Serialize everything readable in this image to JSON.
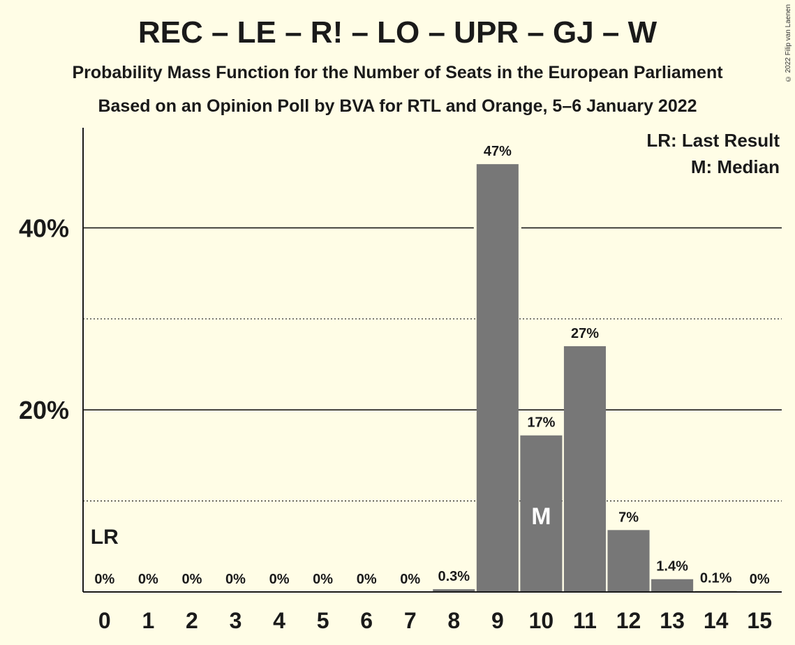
{
  "chart_data": {
    "type": "bar",
    "title": "REC – LE – R! – LO – UPR – GJ – W",
    "subtitle": "Probability Mass Function for the Number of Seats in the European Parliament",
    "subtitle2": "Based on an Opinion Poll by BVA for RTL and Orange, 5–6 January 2022",
    "xlabel": "",
    "ylabel": "",
    "categories": [
      "0",
      "1",
      "2",
      "3",
      "4",
      "5",
      "6",
      "7",
      "8",
      "9",
      "10",
      "11",
      "12",
      "13",
      "14",
      "15"
    ],
    "values": [
      0,
      0,
      0,
      0,
      0,
      0,
      0,
      0,
      0.3,
      47,
      17.2,
      27,
      6.8,
      1.4,
      0.1,
      0
    ],
    "data_labels": [
      "0%",
      "0%",
      "0%",
      "0%",
      "0%",
      "0%",
      "0%",
      "0%",
      "0.3%",
      "47%",
      "17%",
      "27%",
      "7%",
      "1.4%",
      "0.1%",
      "0%"
    ],
    "ylim": [
      0,
      51
    ],
    "y_ticks": [
      {
        "value": 20,
        "label": "20%"
      },
      {
        "value": 40,
        "label": "40%"
      }
    ],
    "minor_gridlines": [
      10,
      30
    ],
    "last_result_seat": 0,
    "last_result_marker": "LR",
    "median_seat": 10,
    "median_marker": "M",
    "legend": [
      "LR: Last Result",
      "M: Median"
    ],
    "legend_position": "top-right",
    "bar_color": "#777777",
    "background_color": "#fffde6"
  },
  "copyright": "© 2022 Filip van Laenen"
}
